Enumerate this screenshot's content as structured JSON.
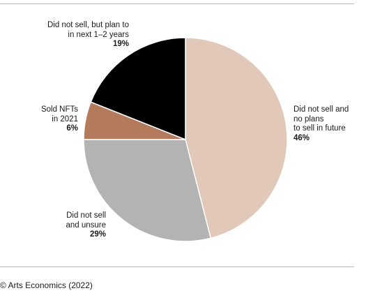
{
  "chart_data": {
    "type": "pie",
    "slices": [
      {
        "label_lines": [
          "Did not sell and",
          "no plans",
          "to sell in future"
        ],
        "value": 46,
        "value_label": "46%",
        "color": "#e2c8b8"
      },
      {
        "label_lines": [
          "Did not sell",
          "and unsure"
        ],
        "value": 29,
        "value_label": "29%",
        "color": "#b3b3b3"
      },
      {
        "label_lines": [
          "Sold NFTs",
          "in 2021"
        ],
        "value": 6,
        "value_label": "6%",
        "color": "#b47a5c"
      },
      {
        "label_lines": [
          "Did not sell, but plan to",
          "in next 1–2 years"
        ],
        "value": 19,
        "value_label": "19%",
        "color": "#000000"
      }
    ]
  },
  "footer": {
    "credit": "© Arts Economics (2022)"
  }
}
